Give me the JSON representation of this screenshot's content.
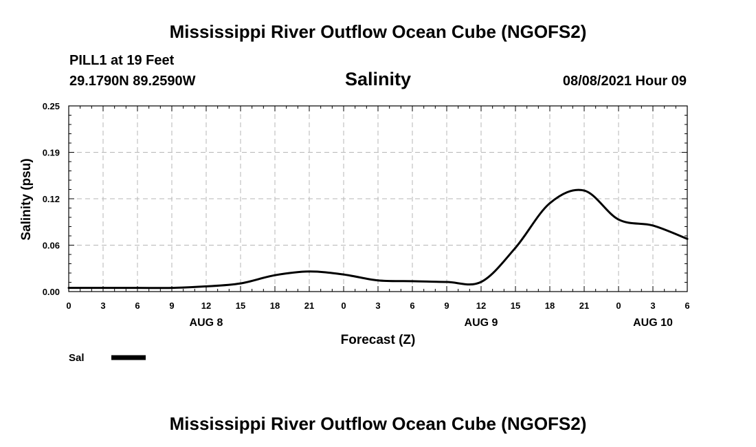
{
  "header": {
    "title_top": "Mississippi River Outflow Ocean Cube (NGOFS2)",
    "title_bottom": "Mississippi River Outflow Ocean Cube (NGOFS2)",
    "station": "PILL1 at 19 Feet",
    "coordinates": "29.1790N  89.2590W",
    "variable": "Salinity",
    "timestamp": "08/08/2021 Hour 09"
  },
  "legend": {
    "label": "Sal"
  },
  "chart_data": {
    "type": "line",
    "title": "Salinity",
    "xlabel": "Forecast (Z)",
    "ylabel": "Salinity (psu)",
    "xlim": [
      0,
      54
    ],
    "ylim": [
      0,
      0.25
    ],
    "grid": true,
    "x_ticks": [
      0,
      3,
      6,
      9,
      12,
      15,
      18,
      21,
      24,
      27,
      30,
      33,
      36,
      39,
      42,
      45,
      48,
      51,
      54
    ],
    "x_tick_labels": [
      "0",
      "3",
      "6",
      "9",
      "12",
      "15",
      "18",
      "21",
      "0",
      "3",
      "6",
      "9",
      "12",
      "15",
      "18",
      "21",
      "0",
      "3",
      "6"
    ],
    "y_ticks": [
      0,
      0.0625,
      0.125,
      0.1875,
      0.25
    ],
    "y_tick_labels": [
      "0.00",
      "0.06",
      "0.12",
      "0.19",
      "0.25"
    ],
    "day_labels": [
      {
        "x": 12,
        "label": "AUG 8"
      },
      {
        "x": 36,
        "label": "AUG 9"
      },
      {
        "x": 51,
        "label": "AUG 10"
      }
    ],
    "series": [
      {
        "name": "Sal",
        "color": "#000000",
        "x": [
          0,
          3,
          6,
          9,
          12,
          15,
          18,
          21,
          24,
          27,
          30,
          33,
          36,
          39,
          42,
          45,
          48,
          51,
          54
        ],
        "values": [
          0.005,
          0.005,
          0.005,
          0.005,
          0.007,
          0.011,
          0.022,
          0.027,
          0.023,
          0.015,
          0.014,
          0.013,
          0.013,
          0.059,
          0.119,
          0.136,
          0.097,
          0.089,
          0.071
        ]
      }
    ]
  }
}
